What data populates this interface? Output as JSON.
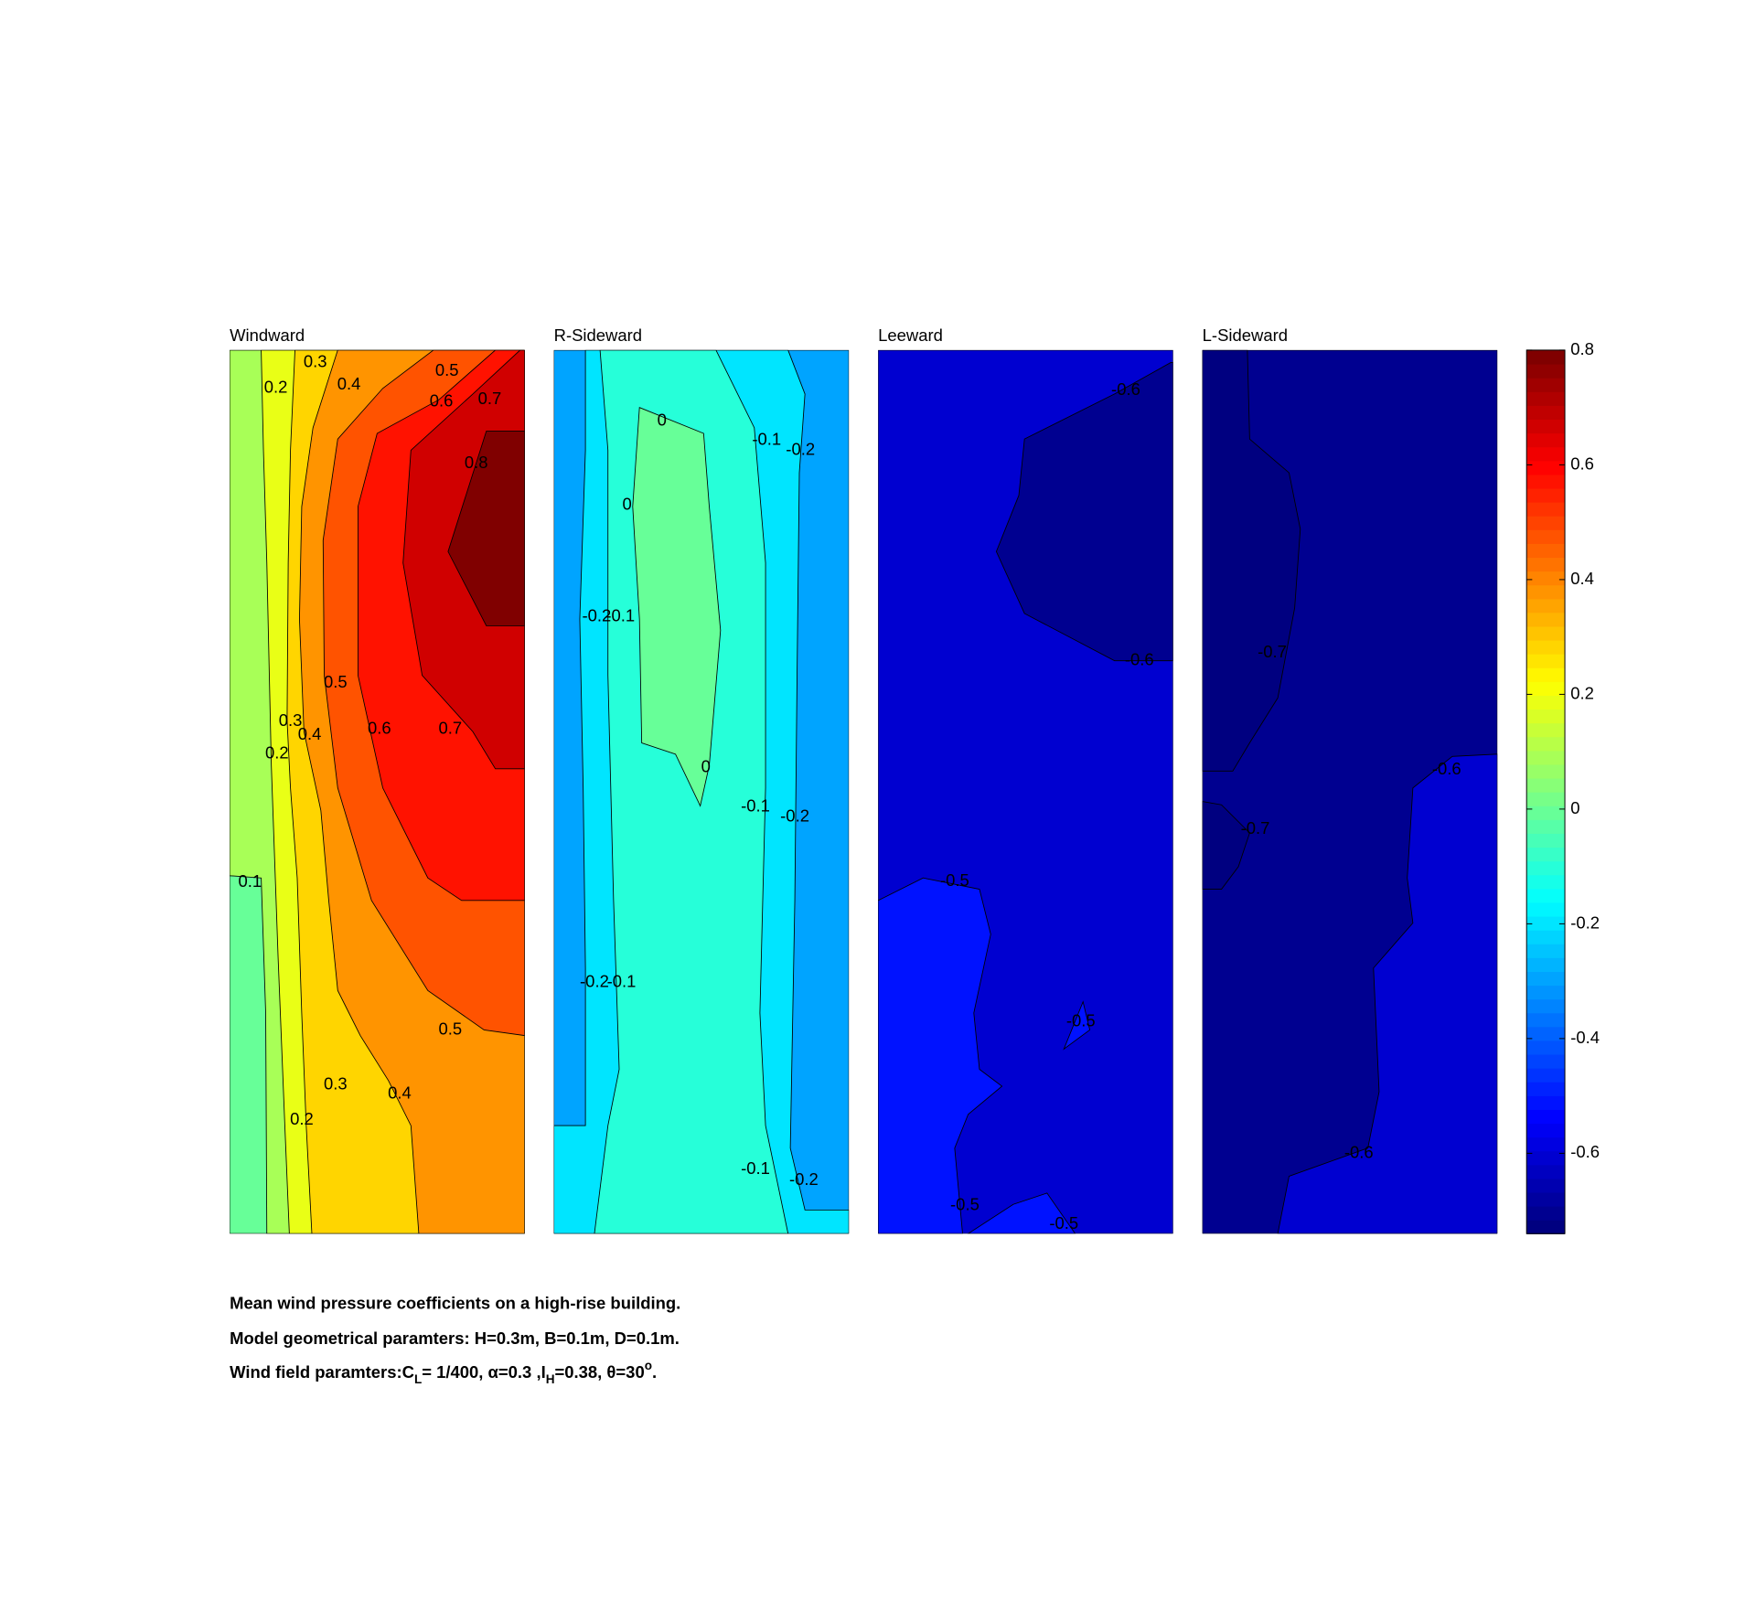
{
  "chart_data": {
    "type": "contour",
    "colormap": "jet",
    "clim": [
      -0.74,
      0.8
    ],
    "cticks": [
      -0.6,
      -0.4,
      -0.2,
      0,
      0.2,
      0.4,
      0.6,
      0.8
    ],
    "panels": [
      {
        "title": "Windward",
        "fills": [
          0,
          0.1,
          0.2,
          0.3,
          0.4,
          0.5,
          0.6,
          0.7,
          0.8
        ],
        "contour_labels": [
          0.3,
          0.2,
          0.4,
          0.5,
          0.6,
          0.7,
          0.8,
          0.5,
          0.3,
          0.4,
          0.2,
          0.6,
          0.7,
          0.1,
          0.5,
          0.3,
          0.4,
          0.2
        ]
      },
      {
        "title": "R-Sideward",
        "fills": [
          -0.3,
          -0.2,
          -0.1,
          0
        ],
        "contour_labels": [
          0,
          -0.1,
          -0.2,
          0,
          -0.2,
          -0.1,
          0,
          -0.1,
          -0.2,
          -0.2,
          -0.1,
          -0.1,
          -0.2
        ]
      },
      {
        "title": "Leeward",
        "fills": [
          -0.6,
          -0.7,
          -0.5,
          -0.5,
          -0.5
        ],
        "contour_labels": [
          -0.6,
          -0.6,
          -0.5,
          -0.5,
          -0.5,
          -0.5
        ]
      },
      {
        "title": "L-Sideward",
        "fills": [
          -0.7,
          -0.74,
          -0.74,
          -0.6
        ],
        "contour_labels": [
          -0.7,
          -0.6,
          -0.7,
          -0.6
        ]
      }
    ],
    "caption": [
      "Mean wind pressure coefficients on a high-rise building.",
      "Model geometrical paramters: H=0.3m, B=0.1m, D=0.1m.",
      [
        "Wind field paramters:C",
        "L",
        "= 1/400, α=0.3 ,I",
        "H",
        "=0.38, θ=30",
        "o",
        "."
      ]
    ]
  }
}
